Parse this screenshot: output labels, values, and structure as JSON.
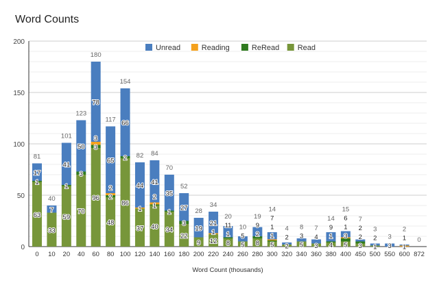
{
  "chart_data": {
    "type": "bar",
    "stacked": true,
    "title": "Word Counts",
    "xlabel": "Word Count (thousands)",
    "ylabel": "",
    "ylim": [
      0,
      200
    ],
    "yticks": [
      0,
      50,
      100,
      150,
      200
    ],
    "grid": true,
    "legend": "top",
    "categories": [
      "0",
      "10",
      "20",
      "40",
      "60",
      "80",
      "100",
      "120",
      "140",
      "160",
      "180",
      "200",
      "220",
      "240",
      "260",
      "280",
      "300",
      "320",
      "340",
      "360",
      "380",
      "400",
      "450",
      "500",
      "550",
      "600",
      "872"
    ],
    "series": [
      {
        "name": "Read",
        "color": "#77963a",
        "values": [
          63,
          33,
          59,
          70,
          96,
          48,
          86,
          37,
          40,
          34,
          22,
          9,
          12,
          8,
          5,
          8,
          5,
          2,
          5,
          3,
          4,
          5,
          3,
          1,
          0,
          0,
          0
        ]
      },
      {
        "name": "ReRead",
        "color": "#2f7a1f",
        "values": [
          1,
          0,
          1,
          3,
          3,
          2,
          2,
          0,
          1,
          1,
          3,
          0,
          0,
          1,
          0,
          2,
          1,
          0,
          0,
          0,
          1,
          3,
          2,
          0,
          0,
          0,
          0
        ]
      },
      {
        "name": "Reading",
        "color": "#f4a11d",
        "values": [
          0,
          0,
          0,
          0,
          3,
          2,
          0,
          1,
          2,
          0,
          0,
          0,
          1,
          0,
          0,
          0,
          1,
          0,
          0,
          0,
          0,
          1,
          0,
          0,
          0,
          1,
          0
        ]
      },
      {
        "name": "Unread",
        "color": "#4a7ebf",
        "values": [
          17,
          7,
          41,
          50,
          78,
          65,
          66,
          44,
          41,
          35,
          27,
          19,
          21,
          11,
          5,
          9,
          7,
          2,
          3,
          4,
          9,
          6,
          2,
          2,
          3,
          1,
          0
        ]
      }
    ],
    "totals": [
      81,
      40,
      101,
      123,
      180,
      117,
      154,
      82,
      84,
      70,
      52,
      28,
      34,
      20,
      10,
      19,
      14,
      4,
      8,
      7,
      14,
      15,
      7,
      3,
      3,
      2,
      0
    ],
    "legend_order": [
      "Unread",
      "Reading",
      "ReRead",
      "Read"
    ]
  }
}
